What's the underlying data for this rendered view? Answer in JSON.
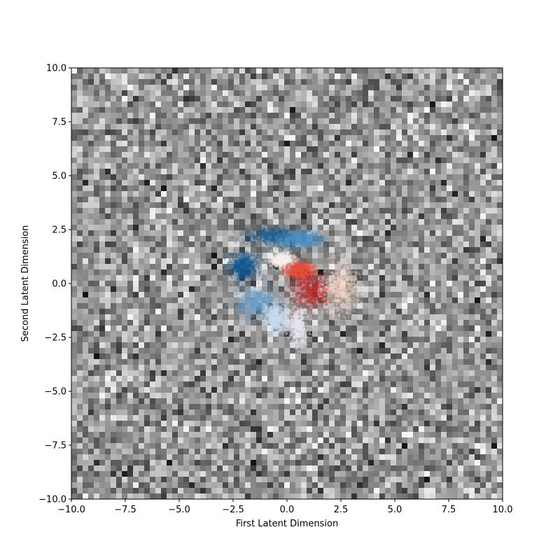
{
  "chart_data": {
    "type": "scatter",
    "xlabel": "First Latent Dimension",
    "ylabel": "Second Latent Dimension",
    "xlim": [
      -10,
      10
    ],
    "ylim": [
      -10,
      10
    ],
    "xticks": [
      -10,
      -7.5,
      -5,
      -2.5,
      0,
      2.5,
      5,
      7.5,
      10
    ],
    "yticks": [
      -10,
      -7.5,
      -5,
      -2.5,
      0,
      2.5,
      5,
      7.5,
      10
    ],
    "xtick_labels": [
      "−10.0",
      "−7.5",
      "−5.0",
      "−2.5",
      "0.0",
      "2.5",
      "5.0",
      "7.5",
      "10.0"
    ],
    "ytick_labels": [
      "−10.0",
      "−7.5",
      "−5.0",
      "−2.5",
      "0.0",
      "2.5",
      "5.0",
      "7.5",
      "10.0"
    ],
    "grid": false,
    "background": "grayscale noise heatmap across full latent range",
    "colormap": "RdBu",
    "clusters": [
      {
        "center": [
          -0.6,
          2.2
        ],
        "spread": [
          1.0,
          0.35
        ],
        "color": "#1f5f8f"
      },
      {
        "center": [
          0.6,
          2.05
        ],
        "spread": [
          1.0,
          0.35
        ],
        "color": "#4a8fc4"
      },
      {
        "center": [
          -2.0,
          0.8
        ],
        "spread": [
          0.6,
          0.55
        ],
        "color": "#105a92"
      },
      {
        "center": [
          -1.4,
          -0.9
        ],
        "spread": [
          0.9,
          0.6
        ],
        "color": "#6aa4d2"
      },
      {
        "center": [
          -0.5,
          -1.6
        ],
        "spread": [
          0.5,
          0.6
        ],
        "color": "#c8dcf0"
      },
      {
        "center": [
          0.5,
          -2.0
        ],
        "spread": [
          0.35,
          0.8
        ],
        "color": "#e4e4f0"
      },
      {
        "center": [
          -0.2,
          1.1
        ],
        "spread": [
          0.5,
          0.3
        ],
        "color": "#f6f0ee"
      },
      {
        "center": [
          0.6,
          0.6
        ],
        "spread": [
          0.6,
          0.35
        ],
        "color": "#e84d3a"
      },
      {
        "center": [
          1.1,
          -0.3
        ],
        "spread": [
          0.75,
          0.75
        ],
        "color": "#c0282a"
      },
      {
        "center": [
          2.5,
          -0.2
        ],
        "spread": [
          0.8,
          1.1
        ],
        "color": "#f6d4c2"
      }
    ]
  }
}
